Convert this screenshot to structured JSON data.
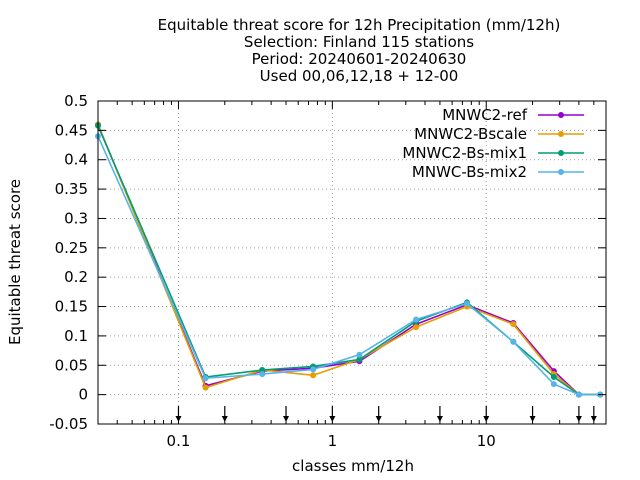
{
  "chart_data": {
    "type": "line",
    "title_lines": [
      "Equitable threat score  for 12h Precipitation (mm/12h)",
      "Selection: Finland    115 stations",
      "Period: 20240601-20240630",
      "Used 00,06,12,18 + 12-00"
    ],
    "xlabel": "classes mm/12h",
    "ylabel": "Equitable threat score",
    "x_scale": "log",
    "xlim": [
      0.03,
      60
    ],
    "ylim": [
      -0.05,
      0.5
    ],
    "x_ticks": [
      0.1,
      1,
      10
    ],
    "x_tick_labels": [
      "0.1",
      "1",
      "10"
    ],
    "y_ticks": [
      -0.05,
      0,
      0.05,
      0.1,
      0.15,
      0.2,
      0.25,
      0.3,
      0.35,
      0.4,
      0.45,
      0.5
    ],
    "y_tick_labels": [
      "-0.05",
      "0",
      "0.05",
      "0.1",
      "0.15",
      "0.2",
      "0.25",
      "0.3",
      "0.35",
      "0.4",
      "0.45",
      "0.5"
    ],
    "class_markers": [
      0.1,
      0.2,
      0.5,
      1,
      2,
      5,
      10,
      20,
      40,
      50
    ],
    "grid": true,
    "legend_position": "top-right",
    "x": [
      0.03,
      0.15,
      0.35,
      0.75,
      1.5,
      3.5,
      7.5,
      15,
      27.5,
      40,
      55
    ],
    "series": [
      {
        "name": "MNWC2-ref",
        "color": "#9400d3",
        "values": [
          0.46,
          0.015,
          0.04,
          0.045,
          0.057,
          0.12,
          0.153,
          0.122,
          0.04,
          0.0,
          0.0
        ]
      },
      {
        "name": "MNWC2-Bscale",
        "color": "#e69f00",
        "values": [
          0.46,
          0.012,
          0.042,
          0.033,
          0.06,
          0.115,
          0.15,
          0.12,
          0.035,
          0.0,
          0.0
        ]
      },
      {
        "name": "MNWC2-Bs-mix1",
        "color": "#009e73",
        "values": [
          0.458,
          0.03,
          0.042,
          0.048,
          0.06,
          0.125,
          0.157,
          0.09,
          0.03,
          0.0,
          0.0
        ]
      },
      {
        "name": "MNWC-Bs-mix2",
        "color": "#56b4e9",
        "values": [
          0.44,
          0.028,
          0.035,
          0.043,
          0.068,
          0.128,
          0.155,
          0.09,
          0.018,
          0.0,
          0.0
        ]
      }
    ]
  }
}
